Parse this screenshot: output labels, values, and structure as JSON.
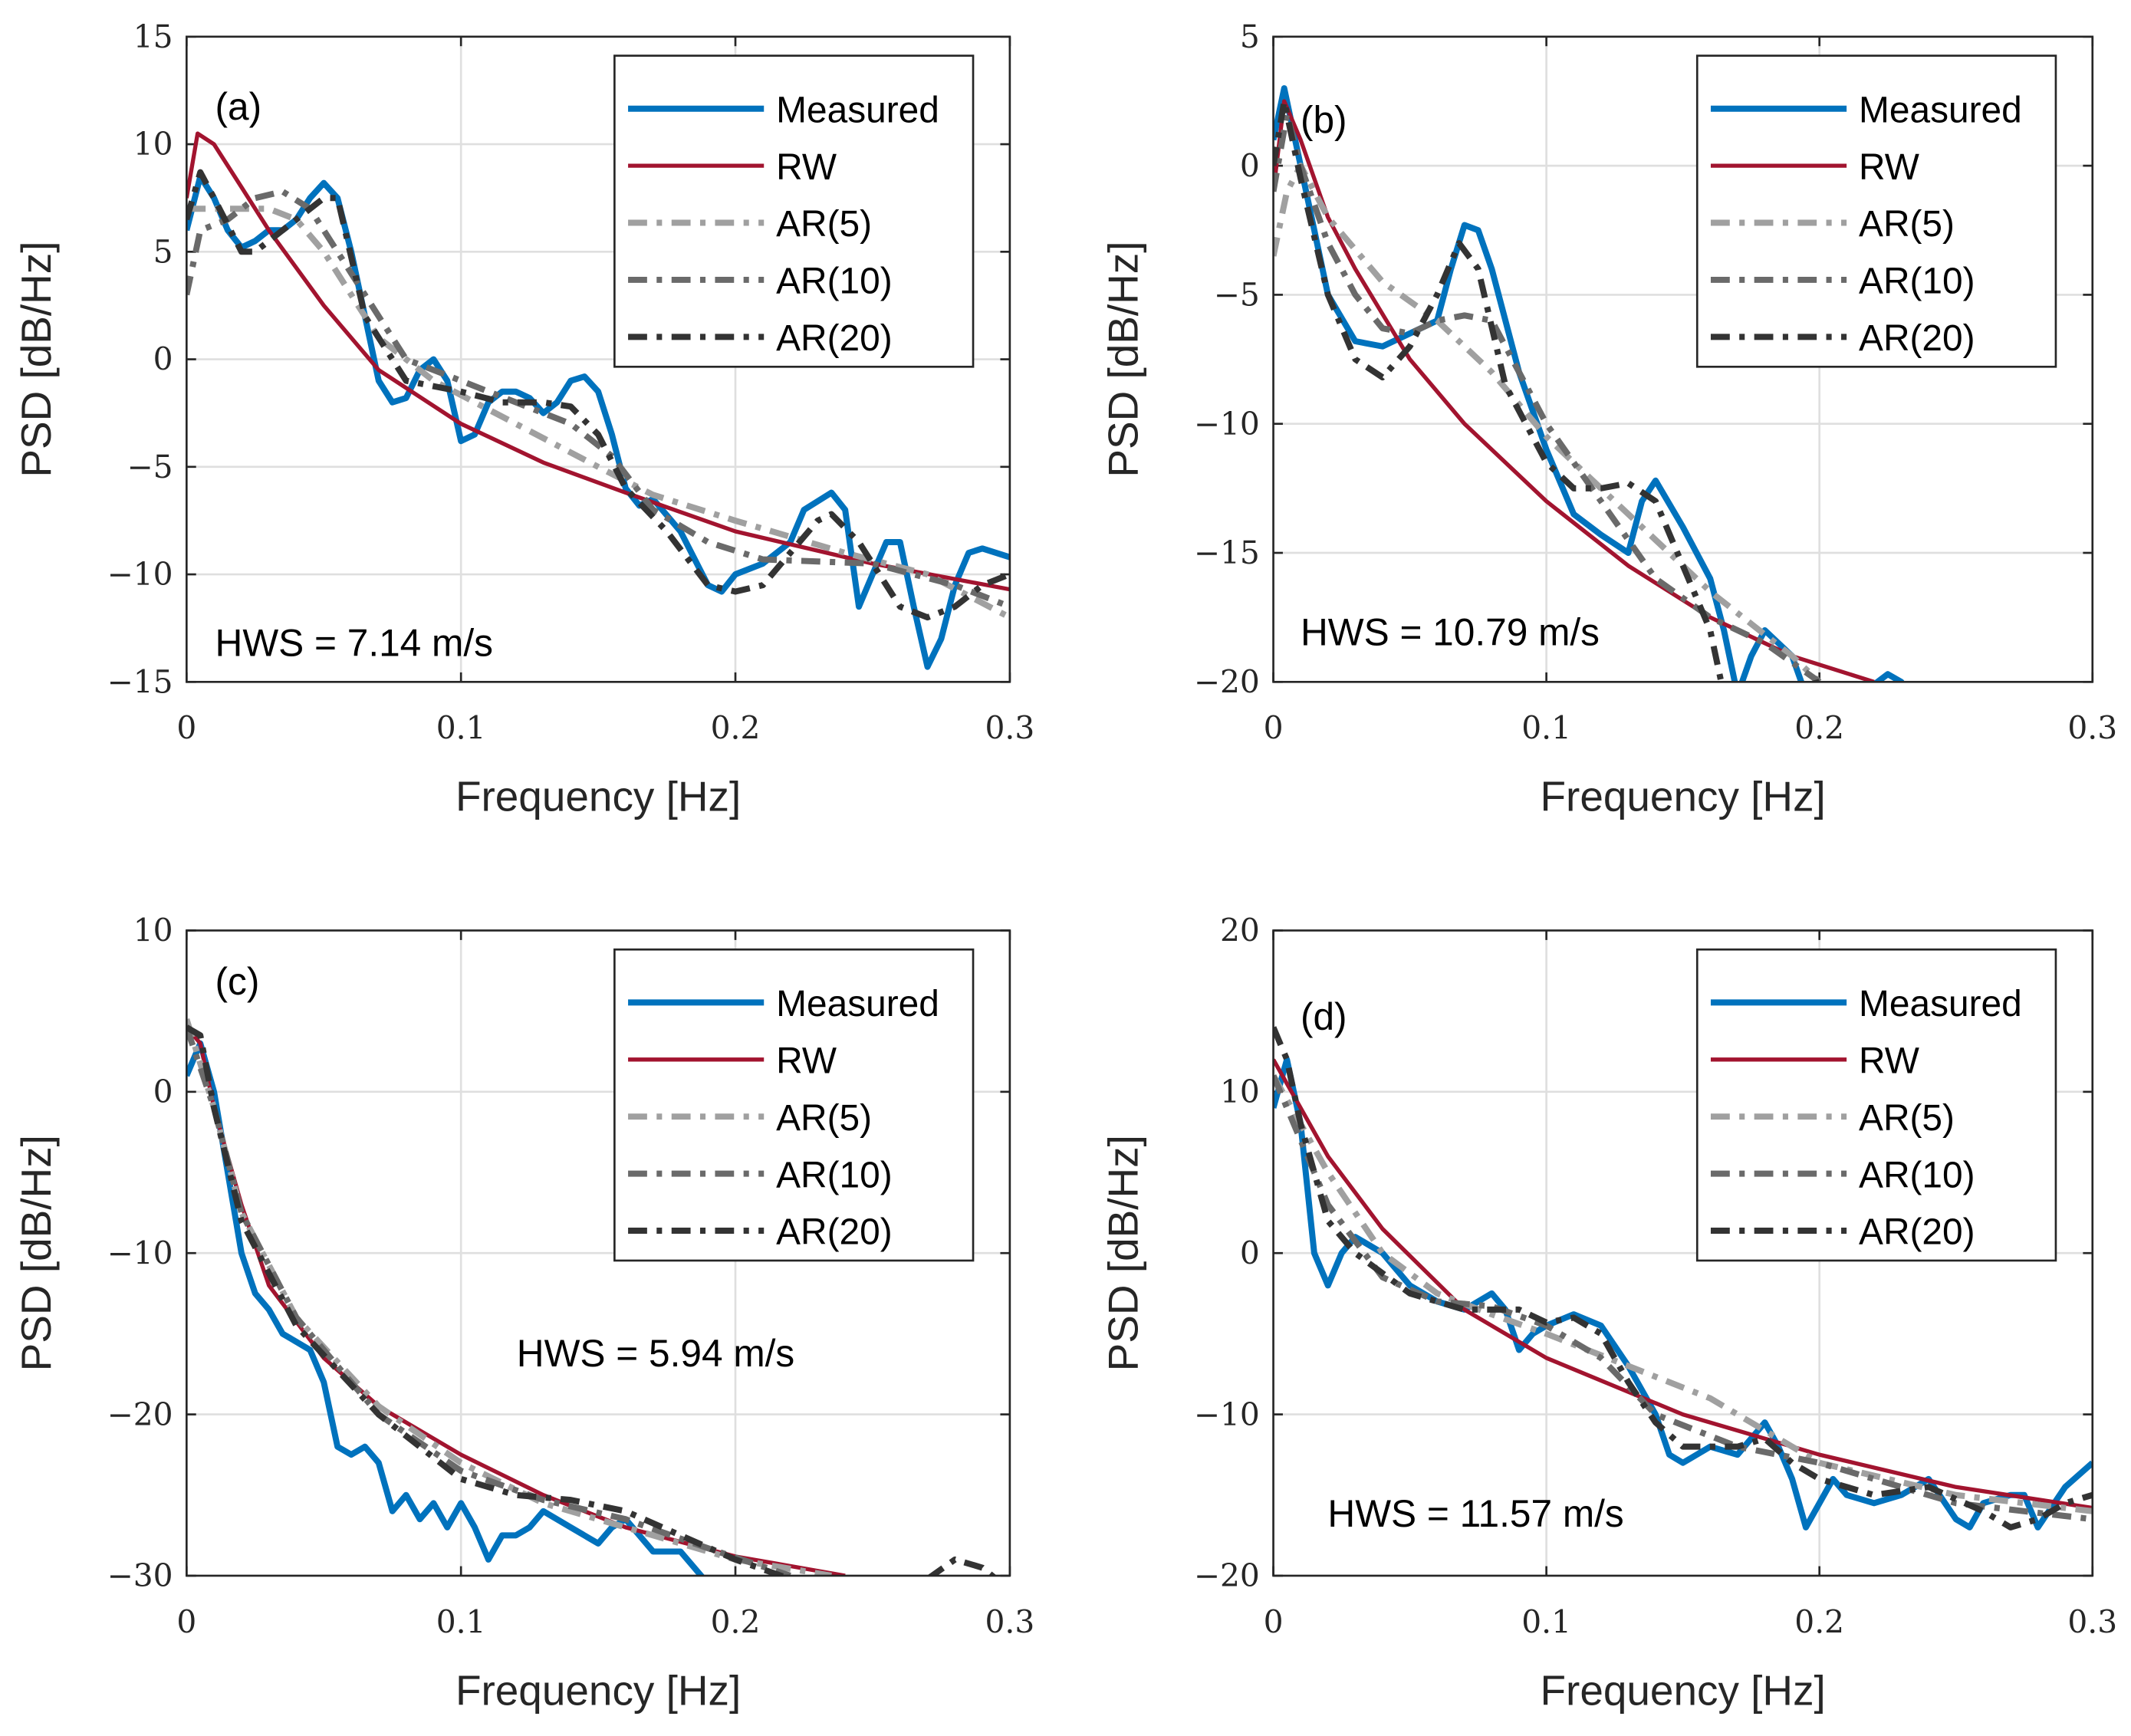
{
  "colors": {
    "Measured": "#0072BD",
    "RW": "#A2142F",
    "AR(5)": "#A0A0A0",
    "AR(10)": "#6A6A6A",
    "AR(20)": "#333333",
    "grid": "#DFDFDF"
  },
  "chart_data": [
    {
      "type": "line",
      "panel_label": "(a)",
      "annotation": "HWS = 7.14 m/s",
      "xlabel": "Frequency [Hz]",
      "ylabel": "PSD [dB/Hz]",
      "xlim": [
        0,
        0.3
      ],
      "ylim": [
        -15,
        15
      ],
      "xticks": [
        0,
        0.1,
        0.2,
        0.3
      ],
      "xtick_labels": [
        "0",
        "0.1",
        "0.2",
        "0.3"
      ],
      "yticks": [
        -15,
        -10,
        -5,
        0,
        5,
        10,
        15
      ],
      "ytick_labels": [
        "−15",
        "−10",
        "−5",
        "0",
        "5",
        "10",
        "15"
      ],
      "grid": true,
      "legend": "top-right",
      "series": [
        {
          "name": "Measured",
          "x": [
            0,
            0.005,
            0.01,
            0.015,
            0.02,
            0.025,
            0.03,
            0.035,
            0.04,
            0.045,
            0.05,
            0.055,
            0.06,
            0.065,
            0.07,
            0.075,
            0.08,
            0.085,
            0.09,
            0.095,
            0.1,
            0.105,
            0.11,
            0.115,
            0.12,
            0.125,
            0.13,
            0.135,
            0.14,
            0.145,
            0.15,
            0.155,
            0.16,
            0.165,
            0.17,
            0.18,
            0.19,
            0.195,
            0.2,
            0.21,
            0.22,
            0.225,
            0.235,
            0.24,
            0.245,
            0.25,
            0.255,
            0.26,
            0.265,
            0.27,
            0.275,
            0.28,
            0.285,
            0.29,
            0.3
          ],
          "y": [
            6,
            8.5,
            7.5,
            6,
            5.2,
            5.5,
            6,
            6,
            6.5,
            7.5,
            8.2,
            7.5,
            5,
            2,
            -1,
            -2,
            -1.8,
            -0.5,
            0,
            -1,
            -3.8,
            -3.5,
            -2,
            -1.5,
            -1.5,
            -1.8,
            -2.5,
            -2,
            -1,
            -0.8,
            -1.5,
            -3.5,
            -6,
            -6.8,
            -6.5,
            -8,
            -10.5,
            -10.8,
            -10,
            -9.5,
            -8.5,
            -7,
            -6.2,
            -7,
            -11.5,
            -10,
            -8.5,
            -8.5,
            -11.5,
            -14.3,
            -13,
            -10.5,
            -9,
            -8.8,
            -9.2
          ]
        },
        {
          "name": "RW",
          "x": [
            0,
            0.004,
            0.01,
            0.02,
            0.03,
            0.05,
            0.07,
            0.1,
            0.13,
            0.16,
            0.2,
            0.25,
            0.3
          ],
          "y": [
            7.5,
            10.5,
            10,
            8,
            6,
            2.5,
            -0.5,
            -3,
            -4.8,
            -6.2,
            -8,
            -9.5,
            -10.7
          ]
        },
        {
          "name": "AR(5)",
          "x": [
            0,
            0.02,
            0.03,
            0.04,
            0.05,
            0.07,
            0.09,
            0.12,
            0.15,
            0.17,
            0.2,
            0.24,
            0.27,
            0.3
          ],
          "y": [
            7,
            7,
            7,
            6.5,
            5,
            1,
            -1,
            -3,
            -5,
            -6.3,
            -7.5,
            -9,
            -10,
            -12
          ]
        },
        {
          "name": "AR(10)",
          "x": [
            0,
            0.005,
            0.015,
            0.025,
            0.035,
            0.045,
            0.06,
            0.08,
            0.1,
            0.12,
            0.14,
            0.155,
            0.17,
            0.19,
            0.21,
            0.25,
            0.28,
            0.3
          ],
          "y": [
            3,
            6,
            6.5,
            7.5,
            7.8,
            7,
            4,
            0,
            -1,
            -2,
            -3,
            -4.5,
            -7,
            -8.5,
            -9.3,
            -9.5,
            -10.5,
            -11.5
          ]
        },
        {
          "name": "AR(20)",
          "x": [
            0,
            0.005,
            0.01,
            0.02,
            0.025,
            0.03,
            0.04,
            0.05,
            0.055,
            0.065,
            0.08,
            0.1,
            0.115,
            0.13,
            0.14,
            0.15,
            0.16,
            0.175,
            0.19,
            0.2,
            0.21,
            0.22,
            0.23,
            0.235,
            0.245,
            0.26,
            0.27,
            0.28,
            0.29,
            0.3
          ],
          "y": [
            6.5,
            8.7,
            7.5,
            5,
            5,
            5.5,
            6.5,
            7.5,
            7.5,
            2,
            -1,
            -1.5,
            -2,
            -2,
            -2.2,
            -3.5,
            -6,
            -8,
            -10.5,
            -10.8,
            -10.5,
            -9,
            -7.5,
            -7.2,
            -8.5,
            -11.5,
            -12,
            -11.5,
            -10.5,
            -10
          ]
        }
      ]
    },
    {
      "type": "line",
      "panel_label": "(b)",
      "annotation": "HWS = 10.79 m/s",
      "xlabel": "Frequency [Hz]",
      "ylabel": "PSD [dB/Hz]",
      "xlim": [
        0,
        0.3
      ],
      "ylim": [
        -20,
        5
      ],
      "xticks": [
        0,
        0.1,
        0.2,
        0.3
      ],
      "xtick_labels": [
        "0",
        "0.1",
        "0.2",
        "0.3"
      ],
      "yticks": [
        -20,
        -15,
        -10,
        -5,
        0,
        5
      ],
      "ytick_labels": [
        "−20",
        "−15",
        "−10",
        "−5",
        "0",
        "5"
      ],
      "grid": true,
      "legend": "top-right",
      "series": [
        {
          "name": "Measured",
          "x": [
            0,
            0.004,
            0.01,
            0.02,
            0.03,
            0.04,
            0.05,
            0.06,
            0.065,
            0.07,
            0.075,
            0.08,
            0.09,
            0.1,
            0.11,
            0.12,
            0.13,
            0.135,
            0.14,
            0.15,
            0.16,
            0.165,
            0.17,
            0.175,
            0.18,
            0.19,
            0.195,
            0.215,
            0.225,
            0.23,
            0.232
          ],
          "y": [
            1,
            3,
            0,
            -5,
            -6.8,
            -7,
            -6.5,
            -6,
            -4,
            -2.3,
            -2.5,
            -4,
            -8,
            -11,
            -13.5,
            -14.3,
            -15,
            -13,
            -12.2,
            -14,
            -16,
            -18,
            -20.5,
            -19,
            -18,
            -19,
            -20.5,
            -20.5,
            -19.7,
            -20,
            -20.5
          ]
        },
        {
          "name": "RW",
          "x": [
            0,
            0.004,
            0.01,
            0.02,
            0.03,
            0.05,
            0.07,
            0.1,
            0.13,
            0.16,
            0.19,
            0.22
          ],
          "y": [
            -1,
            2.5,
            1,
            -2,
            -4,
            -7.5,
            -10,
            -13,
            -15.5,
            -17.5,
            -19,
            -20
          ]
        },
        {
          "name": "AR(5)",
          "x": [
            0,
            0.005,
            0.01,
            0.02,
            0.04,
            0.06,
            0.08,
            0.1,
            0.13,
            0.16,
            0.19,
            0.2
          ],
          "y": [
            -3.5,
            -1,
            0,
            -2,
            -4.5,
            -6,
            -8,
            -10.5,
            -13.5,
            -16.5,
            -19,
            -20
          ]
        },
        {
          "name": "AR(10)",
          "x": [
            0,
            0.005,
            0.01,
            0.02,
            0.03,
            0.04,
            0.05,
            0.06,
            0.07,
            0.08,
            0.09,
            0.1,
            0.12,
            0.14,
            0.16,
            0.18,
            0.2
          ],
          "y": [
            -1,
            2,
            0,
            -3,
            -5,
            -6.3,
            -6.5,
            -6,
            -5.8,
            -6,
            -8,
            -10,
            -13,
            -16,
            -17.5,
            -18.5,
            -20
          ]
        },
        {
          "name": "AR(20)",
          "x": [
            0,
            0.004,
            0.01,
            0.02,
            0.03,
            0.04,
            0.05,
            0.06,
            0.068,
            0.075,
            0.085,
            0.1,
            0.11,
            0.12,
            0.13,
            0.14,
            0.15,
            0.16,
            0.165,
            0.19,
            0.2
          ],
          "y": [
            0,
            2.5,
            -0.5,
            -5,
            -7.5,
            -8.2,
            -7,
            -5,
            -3,
            -4,
            -8.5,
            -11.5,
            -12.5,
            -12.5,
            -12.3,
            -13,
            -15.5,
            -18,
            -20.5,
            -20.3,
            -20
          ]
        }
      ]
    },
    {
      "type": "line",
      "panel_label": "(c)",
      "annotation": "HWS = 5.94 m/s",
      "xlabel": "Frequency [Hz]",
      "ylabel": "PSD [dB/Hz]",
      "xlim": [
        0,
        0.3
      ],
      "ylim": [
        -30,
        10
      ],
      "xticks": [
        0,
        0.1,
        0.2,
        0.3
      ],
      "xtick_labels": [
        "0",
        "0.1",
        "0.2",
        "0.3"
      ],
      "yticks": [
        -30,
        -20,
        -10,
        0,
        10
      ],
      "ytick_labels": [
        "−30",
        "−20",
        "−10",
        "0",
        "10"
      ],
      "grid": true,
      "legend": "top-right",
      "series": [
        {
          "name": "Measured",
          "x": [
            0,
            0.005,
            0.01,
            0.015,
            0.02,
            0.025,
            0.03,
            0.035,
            0.04,
            0.045,
            0.05,
            0.055,
            0.06,
            0.065,
            0.07,
            0.075,
            0.08,
            0.085,
            0.09,
            0.095,
            0.1,
            0.105,
            0.11,
            0.115,
            0.12,
            0.125,
            0.13,
            0.14,
            0.15,
            0.155,
            0.16,
            0.17,
            0.18,
            0.19
          ],
          "y": [
            1,
            3,
            0,
            -5,
            -10,
            -12.5,
            -13.5,
            -15,
            -15.5,
            -16,
            -18,
            -22,
            -22.5,
            -22,
            -23,
            -26,
            -25,
            -26.5,
            -25.5,
            -27,
            -25.5,
            -27,
            -29,
            -27.5,
            -27.5,
            -27,
            -26,
            -27,
            -28,
            -27,
            -26.5,
            -28.5,
            -28.5,
            -30.5
          ]
        },
        {
          "name": "RW",
          "x": [
            0,
            0.005,
            0.01,
            0.02,
            0.03,
            0.05,
            0.07,
            0.1,
            0.13,
            0.16,
            0.2,
            0.24
          ],
          "y": [
            4,
            3,
            -1,
            -7,
            -12,
            -16.5,
            -19.5,
            -22.5,
            -25,
            -27,
            -28.8,
            -30
          ]
        },
        {
          "name": "AR(5)",
          "x": [
            0,
            0.01,
            0.02,
            0.04,
            0.07,
            0.1,
            0.13,
            0.16,
            0.2,
            0.235
          ],
          "y": [
            4.5,
            -1,
            -7.5,
            -14,
            -19.5,
            -23,
            -25.5,
            -27,
            -29,
            -30
          ]
        },
        {
          "name": "AR(10)",
          "x": [
            0,
            0.01,
            0.02,
            0.04,
            0.07,
            0.1,
            0.13,
            0.16,
            0.19,
            0.22
          ],
          "y": [
            4,
            -1,
            -7.5,
            -14,
            -20,
            -23.5,
            -25.3,
            -26.5,
            -28.3,
            -30
          ]
        },
        {
          "name": "AR(20)",
          "x": [
            0,
            0.005,
            0.01,
            0.02,
            0.04,
            0.07,
            0.1,
            0.12,
            0.14,
            0.16,
            0.18,
            0.2,
            0.22,
            null,
            0.27,
            0.28,
            0.29,
            0.295
          ],
          "y": [
            4,
            3.5,
            -1,
            -8,
            -14.5,
            -20,
            -24,
            -25,
            -25.3,
            -26,
            -27.5,
            -29,
            -30.2,
            null,
            -30.2,
            -29,
            -29.5,
            -30.2
          ]
        }
      ]
    },
    {
      "type": "line",
      "panel_label": "(d)",
      "annotation": "HWS = 11.57 m/s",
      "xlabel": "Frequency [Hz]",
      "ylabel": "PSD [dB/Hz]",
      "xlim": [
        0,
        0.3
      ],
      "ylim": [
        -20,
        20
      ],
      "xticks": [
        0,
        0.1,
        0.2,
        0.3
      ],
      "xtick_labels": [
        "0",
        "0.1",
        "0.2",
        "0.3"
      ],
      "yticks": [
        -20,
        -10,
        0,
        10,
        20
      ],
      "ytick_labels": [
        "−20",
        "−10",
        "0",
        "10",
        "20"
      ],
      "grid": true,
      "legend": "top-right",
      "series": [
        {
          "name": "Measured",
          "x": [
            0,
            0.005,
            0.01,
            0.015,
            0.02,
            0.025,
            0.03,
            0.04,
            0.05,
            0.06,
            0.07,
            0.08,
            0.085,
            0.09,
            0.095,
            0.1,
            0.11,
            0.12,
            0.13,
            0.14,
            0.145,
            0.15,
            0.16,
            0.17,
            0.18,
            0.185,
            0.19,
            0.195,
            0.2,
            0.205,
            0.21,
            0.22,
            0.23,
            0.24,
            0.25,
            0.255,
            0.26,
            0.27,
            0.275,
            0.28,
            0.29,
            0.3
          ],
          "y": [
            9,
            12,
            8,
            0,
            -2,
            0,
            1,
            0,
            -2,
            -3,
            -3.5,
            -2.5,
            -3.5,
            -6,
            -5,
            -4.5,
            -3.8,
            -4.5,
            -7,
            -10,
            -12.5,
            -13,
            -12,
            -12.5,
            -10.5,
            -12,
            -14,
            -17,
            -15.5,
            -14,
            -15,
            -15.5,
            -15,
            -14,
            -16.5,
            -17,
            -15.5,
            -15,
            -15,
            -17,
            -14.5,
            -13
          ]
        },
        {
          "name": "RW",
          "x": [
            0,
            0.02,
            0.04,
            0.07,
            0.1,
            0.15,
            0.2,
            0.25,
            0.3
          ],
          "y": [
            12,
            6,
            1.5,
            -3.5,
            -6.5,
            -10,
            -12.5,
            -14.5,
            -15.8
          ]
        },
        {
          "name": "AR(5)",
          "x": [
            0,
            0.02,
            0.04,
            0.06,
            0.08,
            0.1,
            0.13,
            0.16,
            0.2,
            0.25,
            0.3
          ],
          "y": [
            11,
            5,
            0,
            -2.5,
            -3.8,
            -5,
            -7,
            -9,
            -13,
            -15,
            -16
          ]
        },
        {
          "name": "AR(10)",
          "x": [
            0,
            0.02,
            0.04,
            0.06,
            0.08,
            0.1,
            0.12,
            0.14,
            0.17,
            0.2,
            0.25,
            0.3
          ],
          "y": [
            11,
            3,
            -1.5,
            -3,
            -3.3,
            -4.5,
            -6.5,
            -10,
            -12,
            -13,
            -15.5,
            -16.5
          ]
        },
        {
          "name": "AR(20)",
          "x": [
            0,
            0.005,
            0.01,
            0.02,
            0.03,
            0.05,
            0.07,
            0.09,
            0.1,
            0.11,
            0.12,
            0.13,
            0.14,
            0.15,
            0.17,
            0.18,
            0.19,
            0.2,
            0.22,
            0.24,
            0.26,
            0.27,
            0.28,
            0.29,
            0.3
          ],
          "y": [
            14,
            12,
            8,
            2,
            0,
            -2.5,
            -3.5,
            -3.5,
            -4.3,
            -4,
            -5,
            -8,
            -10.5,
            -12,
            -12,
            -11.5,
            -13,
            -14,
            -15,
            -14.5,
            -16,
            -17,
            -16.5,
            -15.5,
            -15
          ]
        }
      ]
    }
  ]
}
